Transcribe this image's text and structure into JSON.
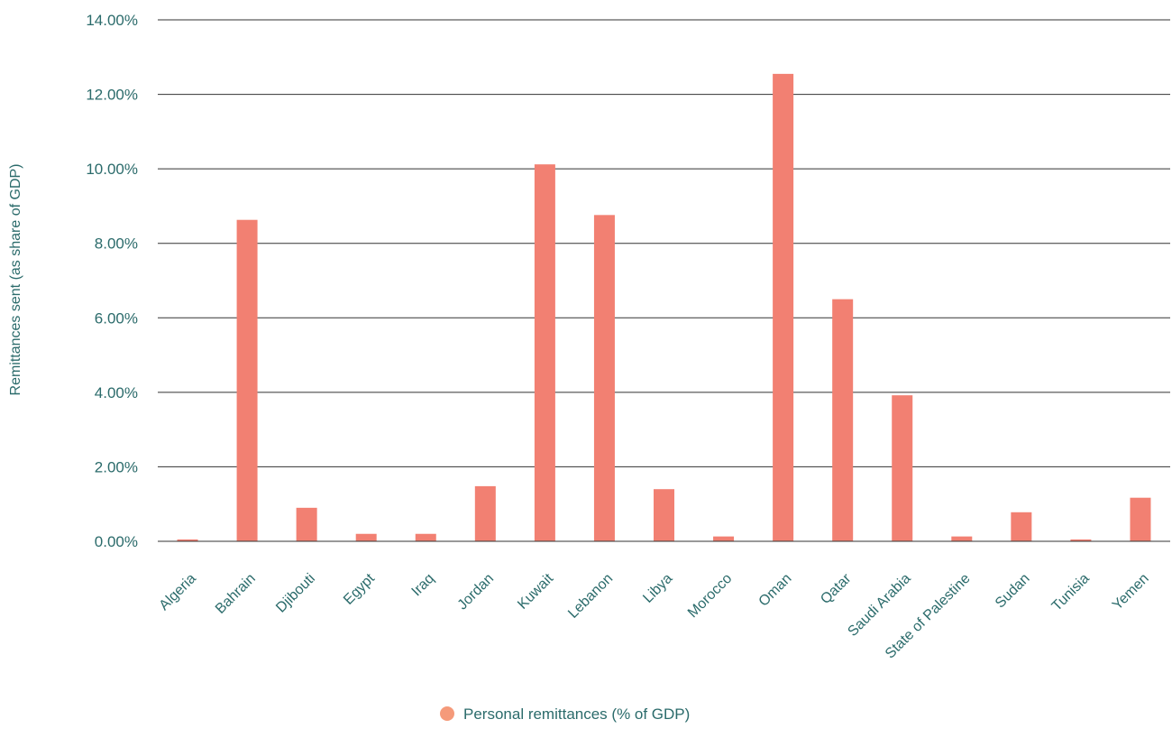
{
  "chart_data": {
    "type": "bar",
    "title": "",
    "xlabel": "",
    "ylabel": "Remittances sent (as share of GDP)",
    "ylim": [
      0,
      14
    ],
    "y_ticks": [
      "0.00%",
      "2.00%",
      "4.00%",
      "6.00%",
      "8.00%",
      "10.00%",
      "12.00%",
      "14.00%"
    ],
    "grid": true,
    "legend_position": "bottom",
    "categories": [
      "Algeria",
      "Bahrain",
      "Djibouti",
      "Egypt",
      "Iraq",
      "Jordan",
      "Kuwait",
      "Lebanon",
      "Libya",
      "Morocco",
      "Oman",
      "Qatar",
      "Saudi Arabia",
      "State of Palestine",
      "Sudan",
      "Tunisia",
      "Yemen"
    ],
    "series": [
      {
        "name": "Personal remittances (% of GDP)",
        "values": [
          0.05,
          8.63,
          0.9,
          0.2,
          0.2,
          1.48,
          10.12,
          8.76,
          1.4,
          0.13,
          12.55,
          6.5,
          3.92,
          0.13,
          0.78,
          0.05,
          1.17
        ],
        "color": "#f28072"
      }
    ],
    "legend_marker_color": "#f59a7a"
  }
}
